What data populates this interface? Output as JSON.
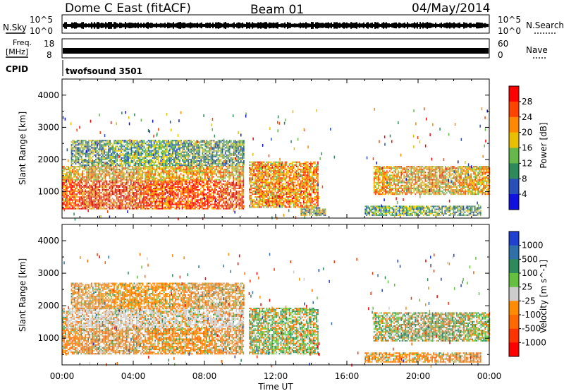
{
  "header": {
    "radar": "Dome C East (fitACF)",
    "beam": "Beam 01",
    "date": "04/May/2014"
  },
  "top_panels": {
    "nsky_label": "N.Sky",
    "nsky_ticks": [
      "10^5",
      "10^0"
    ],
    "nsearch_label": "N.Search",
    "nsearch_ticks": [
      "10^5",
      "10^0"
    ],
    "freq_label_line1": "Freq.",
    "freq_label_line2": "[MHz]",
    "freq_ticks": [
      "18",
      "8"
    ],
    "nave_label": "Nave",
    "nave_ticks": [
      "60",
      "0"
    ],
    "cpid_label": "CPID",
    "cpid_value": "twofsound 3501"
  },
  "colors": {
    "power": [
      "#1010e0",
      "#2850b8",
      "#2e8a5a",
      "#66b84a",
      "#e8c000",
      "#ff8800",
      "#ff4400",
      "#ff0000"
    ],
    "velocity": [
      "#2040d0",
      "#3070a8",
      "#2e8a5a",
      "#66c040",
      "#cccccc",
      "#ff8c00",
      "#ff6a00",
      "#ff3300",
      "#ff0000"
    ]
  },
  "chart_data": [
    {
      "type": "heatmap",
      "panel": "power",
      "ylabel": "Slant Range [km]",
      "y_ticks": [
        "1000",
        "2000",
        "3000",
        "4000"
      ],
      "ylim": [
        180,
        4500
      ],
      "xlim": [
        "00:00",
        "24:00"
      ],
      "x_ticks": [
        "00:00",
        "04:00",
        "08:00",
        "12:00",
        "16:00",
        "20:00",
        "00:00"
      ],
      "xlabel": "Time UT",
      "colorbar_label": "Power [dB]",
      "colorbar_ticks": [
        "4",
        "8",
        "12",
        "16",
        "20",
        "24",
        "28"
      ],
      "regions": [
        {
          "t": [
            0.0,
            10.2
          ],
          "r": [
            450,
            1350
          ],
          "level": 28
        },
        {
          "t": [
            0.0,
            10.2
          ],
          "r": [
            1350,
            1800
          ],
          "level": 22
        },
        {
          "t": [
            0.5,
            10.2
          ],
          "r": [
            1800,
            2600
          ],
          "level": 14
        },
        {
          "t": [
            10.5,
            14.4
          ],
          "r": [
            500,
            1900
          ],
          "level": 24
        },
        {
          "t": [
            13.4,
            14.8
          ],
          "r": [
            250,
            500
          ],
          "level": 16
        },
        {
          "t": [
            17.5,
            24.0
          ],
          "r": [
            900,
            1800
          ],
          "level": 22
        },
        {
          "t": [
            17.0,
            23.5
          ],
          "r": [
            250,
            550
          ],
          "level": 14
        }
      ]
    },
    {
      "type": "heatmap",
      "panel": "velocity",
      "ylabel": "Slant Range [km]",
      "y_ticks": [
        "1000",
        "2000",
        "3000",
        "4000"
      ],
      "ylim": [
        180,
        4500
      ],
      "xlim": [
        "00:00",
        "24:00"
      ],
      "x_ticks": [
        "00:00",
        "04:00",
        "08:00",
        "12:00",
        "16:00",
        "20:00",
        "00:00"
      ],
      "xlabel": "Time UT",
      "colorbar_label": "Velocity [m s^-1]",
      "colorbar_ticks": [
        "1000",
        "500",
        "100",
        "25",
        "-25",
        "-100",
        "-500",
        "-1000"
      ],
      "regions": [
        {
          "t": [
            0.0,
            10.2
          ],
          "r": [
            500,
            1300
          ],
          "level": -100
        },
        {
          "t": [
            0.0,
            10.2
          ],
          "r": [
            1300,
            1900
          ],
          "level": 0
        },
        {
          "t": [
            0.5,
            10.2
          ],
          "r": [
            1900,
            2700
          ],
          "level": -50
        },
        {
          "t": [
            10.5,
            14.4
          ],
          "r": [
            500,
            1900
          ],
          "level": 100
        },
        {
          "t": [
            17.5,
            24.0
          ],
          "r": [
            900,
            1800
          ],
          "level": 100
        },
        {
          "t": [
            17.0,
            23.5
          ],
          "r": [
            250,
            550
          ],
          "level": -100
        }
      ]
    }
  ]
}
